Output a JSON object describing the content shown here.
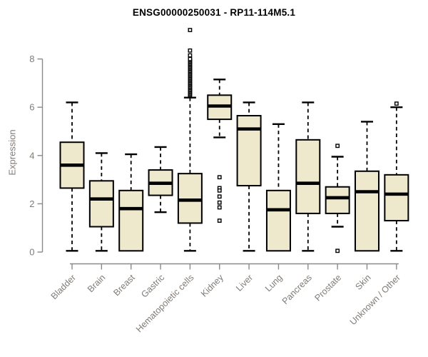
{
  "title": "ENSG00000250031 - RP11-114M5.1",
  "colors": {
    "box_fill": "#EEE8CD",
    "box_stroke": "#000000",
    "median_stroke": "#000000",
    "whisker_stroke": "#000000",
    "outlier_fill": "#FFFFFF",
    "outlier_stroke": "#000000",
    "axis_line": "#8A8A8A",
    "tick_text": "#807B76",
    "title_text": "#000000",
    "background": "#FFFFFF"
  },
  "chart_data": {
    "type": "boxplot",
    "title": "ENSG00000250031 - RP11-114M5.1",
    "xlabel": "",
    "ylabel": "Expression",
    "ylim": [
      0,
      9.4
    ],
    "yticks": [
      0,
      2,
      4,
      6,
      8
    ],
    "grid": false,
    "legend": "none",
    "categories": [
      "Bladder",
      "Brain",
      "Breast",
      "Gastric",
      "Hematopoietic cells",
      "Kidney",
      "Liver",
      "Lung",
      "Pancreas",
      "Prostate",
      "Skin",
      "Unknown / Other"
    ],
    "series": [
      {
        "name": "Bladder",
        "min": 0.05,
        "q1": 2.65,
        "median": 3.6,
        "q3": 4.55,
        "max": 6.2,
        "outliers": []
      },
      {
        "name": "Brain",
        "min": 0.05,
        "q1": 1.05,
        "median": 2.2,
        "q3": 2.95,
        "max": 4.1,
        "outliers": []
      },
      {
        "name": "Breast",
        "min": 0.05,
        "q1": 0.05,
        "median": 1.8,
        "q3": 2.55,
        "max": 4.05,
        "outliers": []
      },
      {
        "name": "Gastric",
        "min": 1.65,
        "q1": 2.35,
        "median": 2.85,
        "q3": 3.4,
        "max": 4.35,
        "outliers": []
      },
      {
        "name": "Hematopoietic cells",
        "min": 0.05,
        "q1": 1.2,
        "median": 2.15,
        "q3": 3.25,
        "max": 6.4,
        "outliers": [
          6.5,
          6.55,
          6.6,
          6.65,
          6.7,
          6.75,
          6.8,
          6.85,
          6.9,
          6.95,
          7.0,
          7.05,
          7.1,
          7.15,
          7.2,
          7.25,
          7.3,
          7.35,
          7.4,
          7.45,
          7.5,
          7.55,
          7.6,
          7.65,
          7.7,
          7.75,
          7.8,
          7.85,
          7.9,
          7.95,
          8.0,
          8.15,
          8.35,
          9.2
        ]
      },
      {
        "name": "Kidney",
        "min": 4.75,
        "q1": 5.5,
        "median": 6.05,
        "q3": 6.5,
        "max": 7.15,
        "outliers": [
          3.1,
          2.65,
          2.55,
          2.3,
          2.05,
          1.85,
          1.3
        ]
      },
      {
        "name": "Liver",
        "min": 0.05,
        "q1": 2.75,
        "median": 5.1,
        "q3": 5.65,
        "max": 6.2,
        "outliers": []
      },
      {
        "name": "Lung",
        "min": 0.05,
        "q1": 0.05,
        "median": 1.75,
        "q3": 2.55,
        "max": 5.3,
        "outliers": []
      },
      {
        "name": "Pancreas",
        "min": 0.05,
        "q1": 1.6,
        "median": 2.85,
        "q3": 4.65,
        "max": 6.2,
        "outliers": []
      },
      {
        "name": "Prostate",
        "min": 1.05,
        "q1": 1.6,
        "median": 2.25,
        "q3": 2.7,
        "max": 3.95,
        "outliers": [
          4.4,
          0.05
        ]
      },
      {
        "name": "Skin",
        "min": 0.05,
        "q1": 0.05,
        "median": 2.5,
        "q3": 3.35,
        "max": 5.4,
        "outliers": []
      },
      {
        "name": "Unknown / Other",
        "min": 0.05,
        "q1": 1.3,
        "median": 2.4,
        "q3": 3.2,
        "max": 6.0,
        "outliers": [
          6.15
        ]
      }
    ]
  }
}
